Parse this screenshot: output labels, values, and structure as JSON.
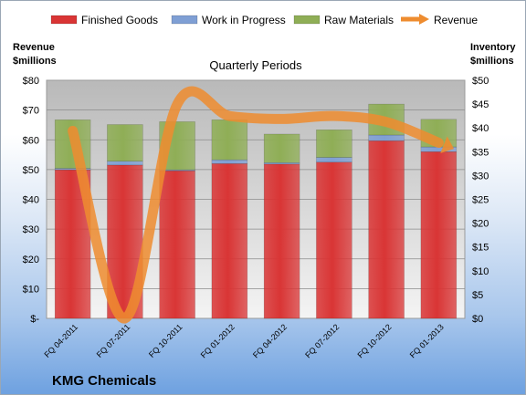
{
  "chart_data": {
    "type": "bar",
    "title": "Quarterly Periods",
    "company": "KMG Chemicals",
    "left_axis": {
      "label": "Revenue\n$millions",
      "min": 0,
      "max": 80,
      "step": 10,
      "ticks": [
        "$-",
        "$10",
        "$20",
        "$30",
        "$40",
        "$50",
        "$60",
        "$70",
        "$80"
      ]
    },
    "right_axis": {
      "label": "Inventory\n$millions",
      "min": 0,
      "max": 50,
      "step": 5,
      "ticks": [
        "$0",
        "$5",
        "$10",
        "$15",
        "$20",
        "$25",
        "$30",
        "$35",
        "$40",
        "$45",
        "$50"
      ]
    },
    "categories": [
      "FQ 04-2011",
      "FQ 07-2011",
      "FQ 10-2011",
      "FQ 01-2012",
      "FQ 04-2012",
      "FQ 07-2012",
      "FQ 10-2012",
      "FQ 01-2013"
    ],
    "stacked_series": [
      {
        "name": "Finished Goods",
        "color": "#d93535",
        "axis": "right",
        "values": [
          31.2,
          32.2,
          31.0,
          32.5,
          32.4,
          32.8,
          37.3,
          35.0
        ]
      },
      {
        "name": "Work in Progress",
        "color": "#7f9fd4",
        "axis": "right",
        "values": [
          0.3,
          0.8,
          0.2,
          0.8,
          0.3,
          1.0,
          1.2,
          1.0
        ]
      },
      {
        "name": "Raw Materials",
        "color": "#8fae56",
        "axis": "right",
        "values": [
          10.2,
          7.7,
          10.1,
          8.4,
          6.0,
          5.8,
          6.5,
          5.8
        ]
      }
    ],
    "line_series": {
      "name": "Revenue",
      "color": "#ee8c2f",
      "axis": "left",
      "values": [
        63,
        0,
        72,
        68,
        67,
        68,
        66,
        59
      ]
    },
    "legend": {
      "position": "top",
      "items": [
        "Finished Goods",
        "Work in Progress",
        "Raw Materials",
        "Revenue"
      ]
    },
    "grid": true
  }
}
